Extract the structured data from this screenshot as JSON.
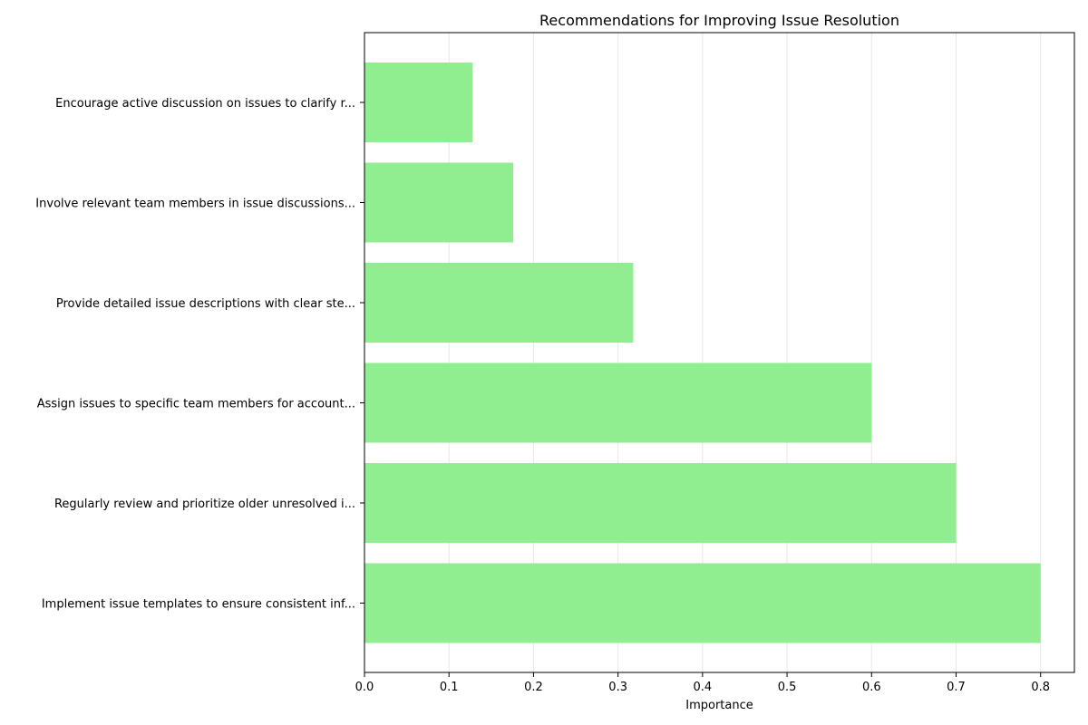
{
  "chart_data": {
    "type": "bar",
    "orientation": "horizontal",
    "title": "Recommendations for Improving Issue Resolution",
    "xlabel": "Importance",
    "ylabel": "",
    "categories": [
      "Implement issue templates to ensure consistent inf...",
      "Regularly review and prioritize older unresolved i...",
      "Assign issues to specific team members for account...",
      "Provide detailed issue descriptions with clear ste...",
      "Involve relevant team members in issue discussions...",
      "Encourage active discussion on issues to clarify r..."
    ],
    "values": [
      0.8,
      0.7,
      0.6,
      0.318,
      0.176,
      0.128
    ],
    "xlim": [
      0,
      0.84
    ],
    "xticks": [
      0.0,
      0.1,
      0.2,
      0.3,
      0.4,
      0.5,
      0.6,
      0.7,
      0.8
    ],
    "xtick_labels": [
      "0.0",
      "0.1",
      "0.2",
      "0.3",
      "0.4",
      "0.5",
      "0.6",
      "0.7",
      "0.8"
    ],
    "grid": "vertical",
    "colors": {
      "bar": "#90ee90",
      "grid": "#e6e6e6",
      "axis": "#000000"
    }
  }
}
